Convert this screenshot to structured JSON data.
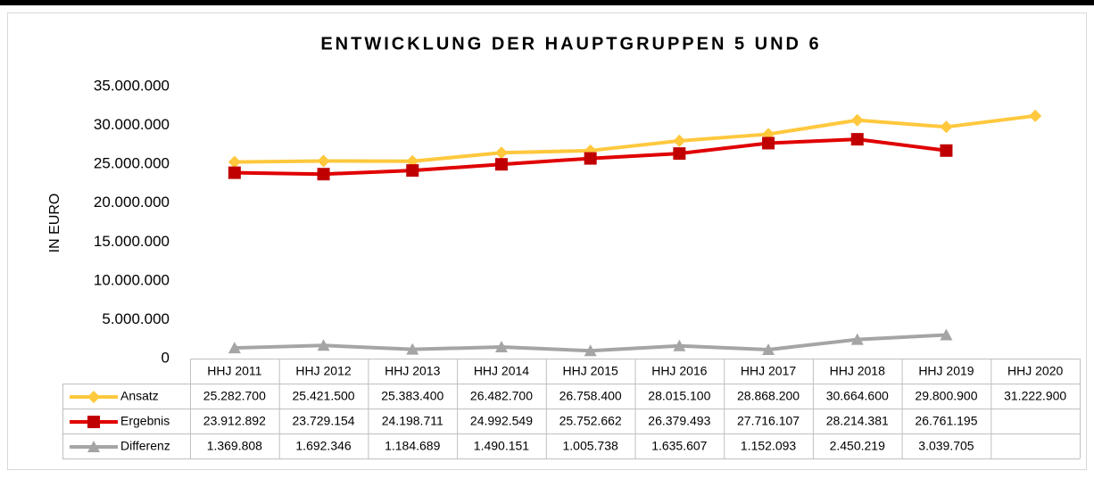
{
  "chart_data": {
    "type": "line",
    "title": "ENTWICKLUNG DER HAUPTGRUPPEN 5 UND 6",
    "y_label": "IN EURO",
    "categories": [
      "HHJ 2011",
      "HHJ 2012",
      "HHJ 2013",
      "HHJ 2014",
      "HHJ 2015",
      "HHJ 2016",
      "HHJ 2017",
      "HHJ 2018",
      "HHJ 2019",
      "HHJ 2020"
    ],
    "series": [
      {
        "name": "Ansatz",
        "color": "#FFC83D",
        "marker": "diamond",
        "values": [
          25282700,
          25421500,
          25383400,
          26482700,
          26758400,
          28015100,
          28868200,
          30664600,
          29800900,
          31222900
        ],
        "value_labels": [
          "25.282.700",
          "25.421.500",
          "25.383.400",
          "26.482.700",
          "26.758.400",
          "28.015.100",
          "28.868.200",
          "30.664.600",
          "29.800.900",
          "31.222.900"
        ]
      },
      {
        "name": "Ergebnis",
        "color": "#E00000",
        "marker": "square",
        "values": [
          23912892,
          23729154,
          24198711,
          24992549,
          25752662,
          26379493,
          27716107,
          28214381,
          26761195,
          null
        ],
        "value_labels": [
          "23.912.892",
          "23.729.154",
          "24.198.711",
          "24.992.549",
          "25.752.662",
          "26.379.493",
          "27.716.107",
          "28.214.381",
          "26.761.195",
          null
        ]
      },
      {
        "name": "Differenz",
        "color": "#A5A5A5",
        "marker": "triangle",
        "values": [
          1369808,
          1692346,
          1184689,
          1490151,
          1005738,
          1635607,
          1152093,
          2450219,
          3039705,
          null
        ],
        "value_labels": [
          "1.369.808",
          "1.692.346",
          "1.184.689",
          "1.490.151",
          "1.005.738",
          "1.635.607",
          "1.152.093",
          "2.450.219",
          "3.039.705",
          null
        ]
      }
    ],
    "ylim": [
      0,
      35000000
    ],
    "yticks": [
      0,
      {
        "value": 5000000,
        "label": "5.000.000"
      },
      {
        "value": 10000000,
        "label": "10.000.000"
      },
      {
        "value": 15000000,
        "label": "15.000.000"
      },
      {
        "value": 20000000,
        "label": "20.000.000"
      },
      {
        "value": 25000000,
        "label": "25.000.000"
      },
      {
        "value": 30000000,
        "label": "30.000.000"
      },
      {
        "value": 35000000,
        "label": "35.000.000"
      }
    ],
    "grid": false,
    "legend": "table"
  }
}
